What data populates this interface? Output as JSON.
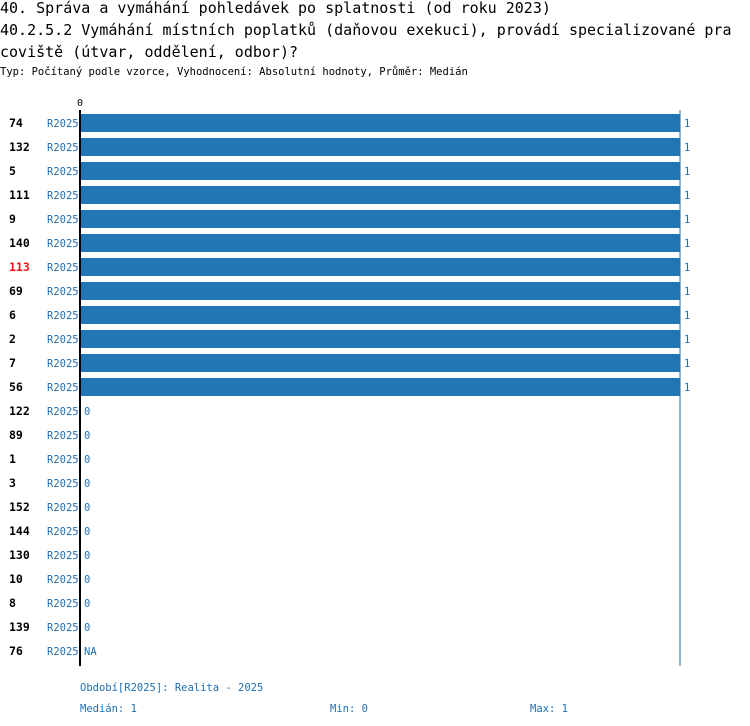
{
  "title_lines": [
    "40. Správa a vymáhání pohledávek po splatnosti (od roku 2023)",
    "40.2.5.2 Vymáhání místních poplatků (daňovou exekuci), provádí specializované pra",
    "coviště (útvar, oddělení, odbor)?"
  ],
  "subtitle": "Typ: Počítaný podle vzorce, Vyhodnocení: Absolutní hodnoty, Průměr: Medián",
  "colors": {
    "bar": "#2077b4",
    "axis": "#000000",
    "label_text": "#000000",
    "highlight_label": "#e31a1c",
    "series_text": "#1f6fb2",
    "right_line": "#1f6fb2"
  },
  "chart_data": {
    "type": "bar",
    "orientation": "horizontal",
    "xlim": [
      0,
      1
    ],
    "x_tick_labels": [
      "0"
    ],
    "series_label": "R2025",
    "highlight_category": "113",
    "categories": [
      "74",
      "132",
      "5",
      "111",
      "9",
      "140",
      "113",
      "69",
      "6",
      "2",
      "7",
      "56",
      "122",
      "89",
      "1",
      "3",
      "152",
      "144",
      "130",
      "10",
      "8",
      "139",
      "76"
    ],
    "values": [
      1,
      1,
      1,
      1,
      1,
      1,
      1,
      1,
      1,
      1,
      1,
      1,
      0,
      0,
      0,
      0,
      0,
      0,
      0,
      0,
      0,
      0,
      null
    ],
    "value_labels": [
      "1",
      "1",
      "1",
      "1",
      "1",
      "1",
      "1",
      "1",
      "1",
      "1",
      "1",
      "1",
      "0",
      "0",
      "0",
      "0",
      "0",
      "0",
      "0",
      "0",
      "0",
      "0",
      "NA"
    ]
  },
  "footer": {
    "period": "Období[R2025]: Realita - 2025",
    "median": "Medián: 1",
    "min": "Min: 0",
    "max": "Max: 1"
  }
}
